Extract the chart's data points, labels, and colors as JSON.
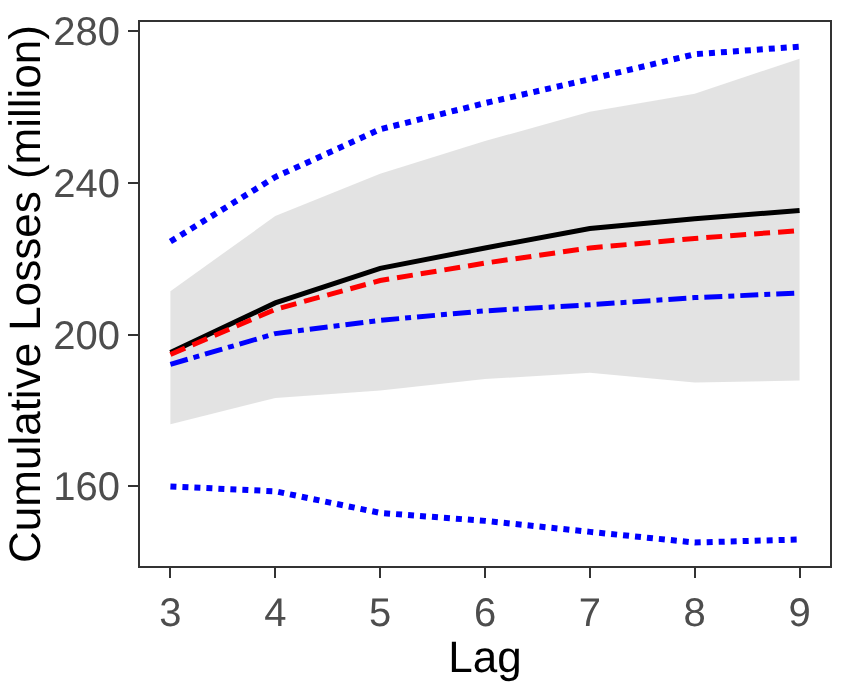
{
  "chart_data": {
    "type": "line",
    "xlabel": "Lag",
    "ylabel": "Cumulative Losses (million)",
    "x": [
      3,
      4,
      5,
      6,
      7,
      8,
      9
    ],
    "series": [
      {
        "color": "#000000",
        "line_style": "solid",
        "values": [
          195.3,
          208.4,
          217.5,
          222.9,
          228.0,
          230.6,
          232.8
        ],
        "lower": [
          176.4,
          183.3,
          185.3,
          188.3,
          190.0,
          187.4,
          187.9
        ],
        "upper": [
          211.5,
          231.3,
          242.5,
          251.1,
          258.8,
          263.6,
          272.8
        ]
      },
      {
        "color": "#ff0000",
        "line_style": "dashed",
        "values": [
          194.8,
          206.7,
          214.3,
          218.9,
          222.9,
          225.4,
          227.5
        ]
      },
      {
        "color": "#0000ff",
        "line_style": "dashdot",
        "values": [
          192.2,
          200.3,
          203.8,
          206.3,
          207.9,
          209.8,
          211.0
        ]
      },
      {
        "color": "#0000ff",
        "line_style": "dotted",
        "values": [
          224.6,
          241.6,
          254.2,
          261.1,
          267.4,
          274.0,
          276.0
        ]
      },
      {
        "color": "#0000ff",
        "line_style": "dotted",
        "values": [
          160.0,
          158.7,
          153.0,
          150.9,
          148.0,
          145.2,
          146.0
        ]
      }
    ],
    "xlim": [
      2.71,
      9.29
    ],
    "ylim": [
      139,
      282.5
    ],
    "xticks": [
      3,
      4,
      5,
      6,
      7,
      8,
      9
    ],
    "yticks": [
      160,
      200,
      240,
      280
    ],
    "marker": "none"
  }
}
